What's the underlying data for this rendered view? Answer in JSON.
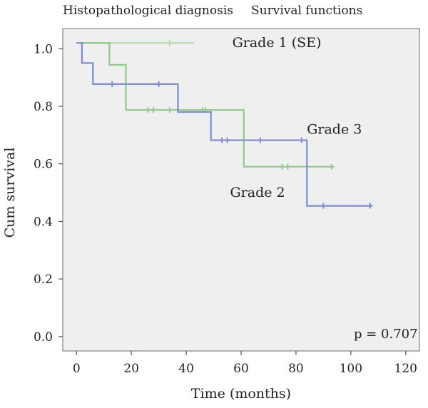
{
  "header": {
    "left": "Histopathological diagnosis",
    "right": "Survival functions"
  },
  "chart_data": {
    "type": "line",
    "step": true,
    "xlabel": "Time (months)",
    "ylabel": "Cum survival",
    "xlim": [
      -5,
      125
    ],
    "ylim": [
      -0.05,
      1.07
    ],
    "xticks": [
      0,
      20,
      40,
      60,
      80,
      100,
      120
    ],
    "yticks": [
      0.0,
      0.2,
      0.4,
      0.6,
      0.8,
      1.0
    ],
    "xtick_labels": [
      "0",
      "20",
      "40",
      "60",
      "80",
      "100",
      "120"
    ],
    "ytick_labels": [
      "0.0",
      "0.2",
      "0.4",
      "0.6",
      "0.8",
      "1.0"
    ],
    "annotation": "p = 0.707",
    "series": [
      {
        "name": "Grade 1 (SE)",
        "color": "#b8d8a8",
        "points": [
          [
            0,
            1.02
          ],
          [
            43,
            1.02
          ]
        ],
        "censored": [
          [
            34,
            1.02
          ]
        ]
      },
      {
        "name": "Grade 2",
        "color": "#8ccc84",
        "points": [
          [
            0,
            1.02
          ],
          [
            12,
            1.02
          ],
          [
            12,
            0.944
          ],
          [
            18,
            0.944
          ],
          [
            18,
            0.787
          ],
          [
            61,
            0.787
          ],
          [
            61,
            0.59
          ],
          [
            94,
            0.59
          ]
        ],
        "censored": [
          [
            26,
            0.787
          ],
          [
            28,
            0.787
          ],
          [
            34,
            0.787
          ],
          [
            46,
            0.787
          ],
          [
            47,
            0.787
          ],
          [
            75,
            0.59
          ],
          [
            77,
            0.59
          ],
          [
            93,
            0.59
          ]
        ]
      },
      {
        "name": "Grade 3",
        "color": "#7e8ed0",
        "points": [
          [
            0,
            1.02
          ],
          [
            2,
            1.02
          ],
          [
            2,
            0.95
          ],
          [
            6,
            0.95
          ],
          [
            6,
            0.877
          ],
          [
            37,
            0.877
          ],
          [
            37,
            0.78
          ],
          [
            49,
            0.78
          ],
          [
            49,
            0.682
          ],
          [
            84,
            0.682
          ],
          [
            84,
            0.454
          ],
          [
            108,
            0.454
          ]
        ],
        "censored": [
          [
            13,
            0.877
          ],
          [
            30,
            0.877
          ],
          [
            53,
            0.682
          ],
          [
            55,
            0.682
          ],
          [
            67,
            0.682
          ],
          [
            82,
            0.682
          ],
          [
            90,
            0.454
          ],
          [
            107,
            0.454
          ]
        ]
      }
    ],
    "labels": [
      {
        "text": "Grade 1 (SE)",
        "x": 73,
        "y": 1.02
      },
      {
        "text": "Grade 3",
        "x": 94,
        "y": 0.72
      },
      {
        "text": "Grade 2",
        "x": 66,
        "y": 0.5
      }
    ]
  }
}
